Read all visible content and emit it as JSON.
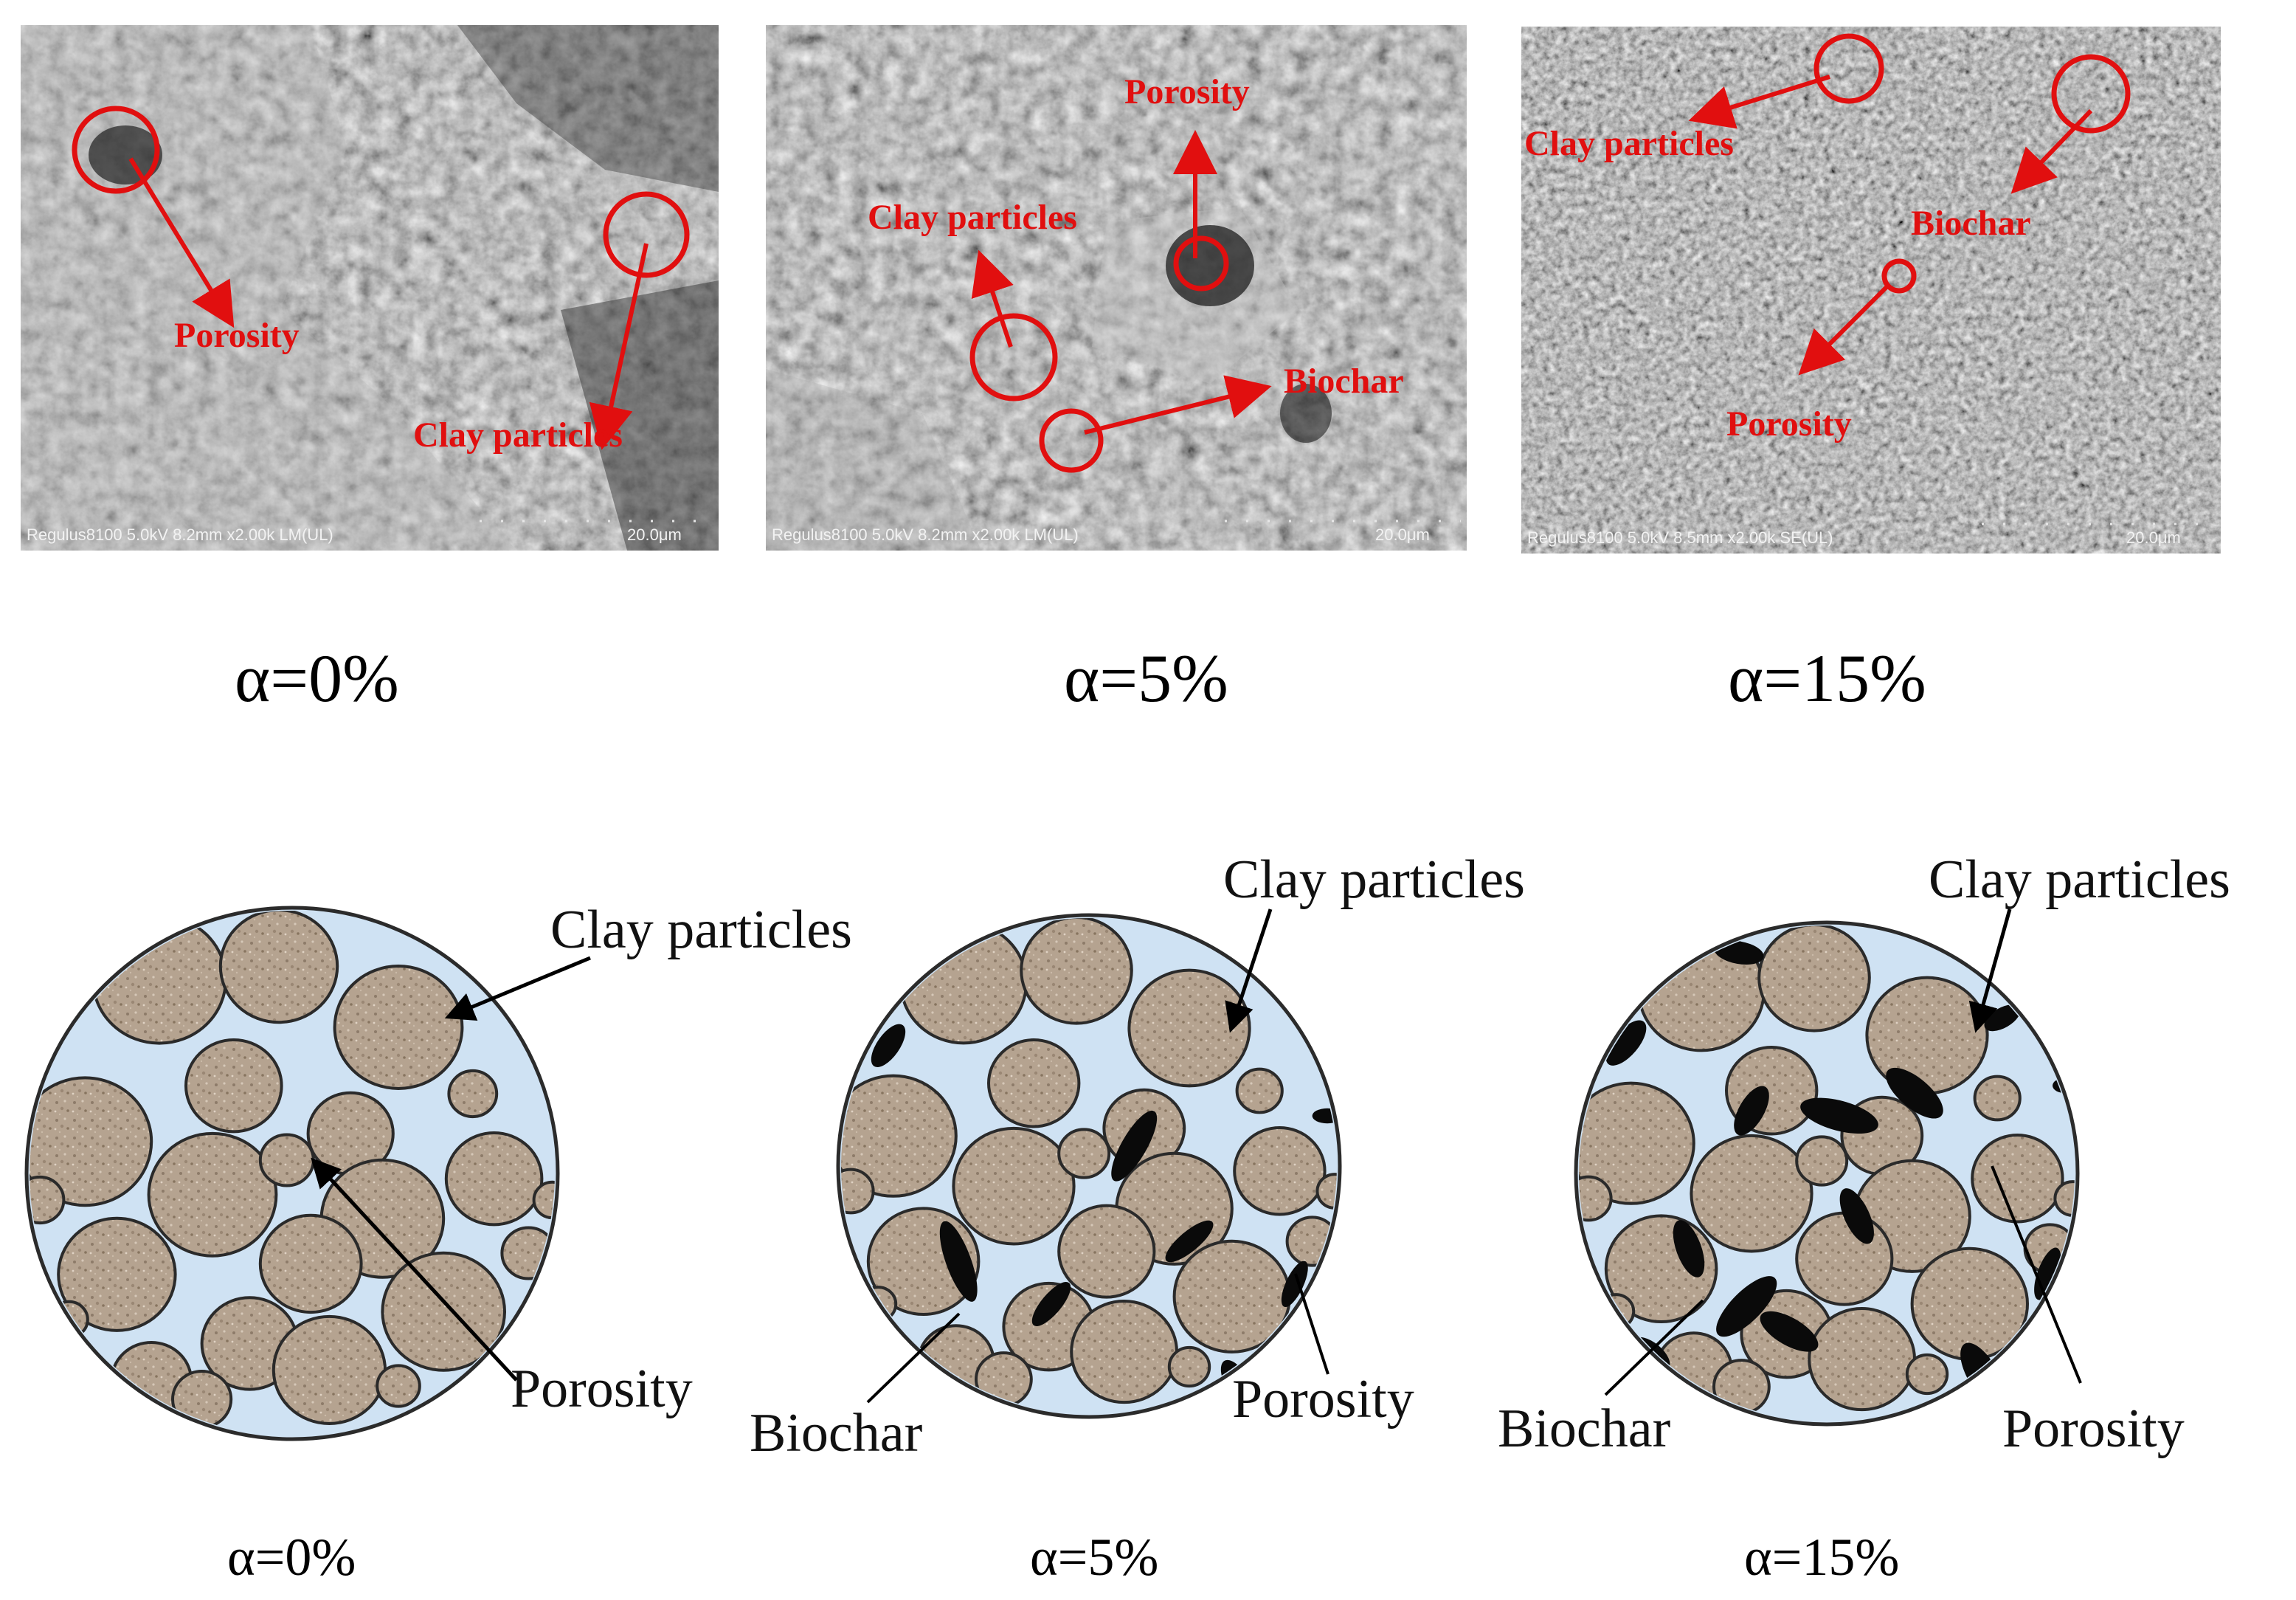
{
  "sem_panels": [
    {
      "id": "sem-0",
      "caption": "α=0%",
      "meta": "Regulus8100 5.0kV 8.2mm x2.00k LM(UL)",
      "scale": "20.0μm",
      "annotations": [
        "Porosity",
        "Clay particles"
      ]
    },
    {
      "id": "sem-5",
      "caption": "α=5%",
      "meta": "Regulus8100 5.0kV 8.2mm x2.00k LM(UL)",
      "scale": "20.0μm",
      "annotations": [
        "Porosity",
        "Clay particles",
        "Biochar"
      ]
    },
    {
      "id": "sem-15",
      "caption": "α=15%",
      "meta": "Regulus8100 5.0kV 8.5mm x2.00k SE(UL)",
      "scale": "20.0μm",
      "annotations": [
        "Clay particles",
        "Biochar",
        "Porosity"
      ]
    }
  ],
  "schematics": [
    {
      "id": "sch-0",
      "caption": "α=0%",
      "labels": [
        "Clay particles",
        "Porosity"
      ]
    },
    {
      "id": "sch-5",
      "caption": "α=5%",
      "labels": [
        "Clay particles",
        "Biochar",
        "Porosity"
      ]
    },
    {
      "id": "sch-15",
      "caption": "α=15%",
      "labels": [
        "Clay particles",
        "Biochar",
        "Porosity"
      ]
    }
  ],
  "colors": {
    "annotation_red": "#e10f0f",
    "pore_fill": "#cfe2f3",
    "clay_fill": "#b3a08e",
    "biochar_fill": "#0a0a0a",
    "sem_gray": "#7a7a7a"
  }
}
